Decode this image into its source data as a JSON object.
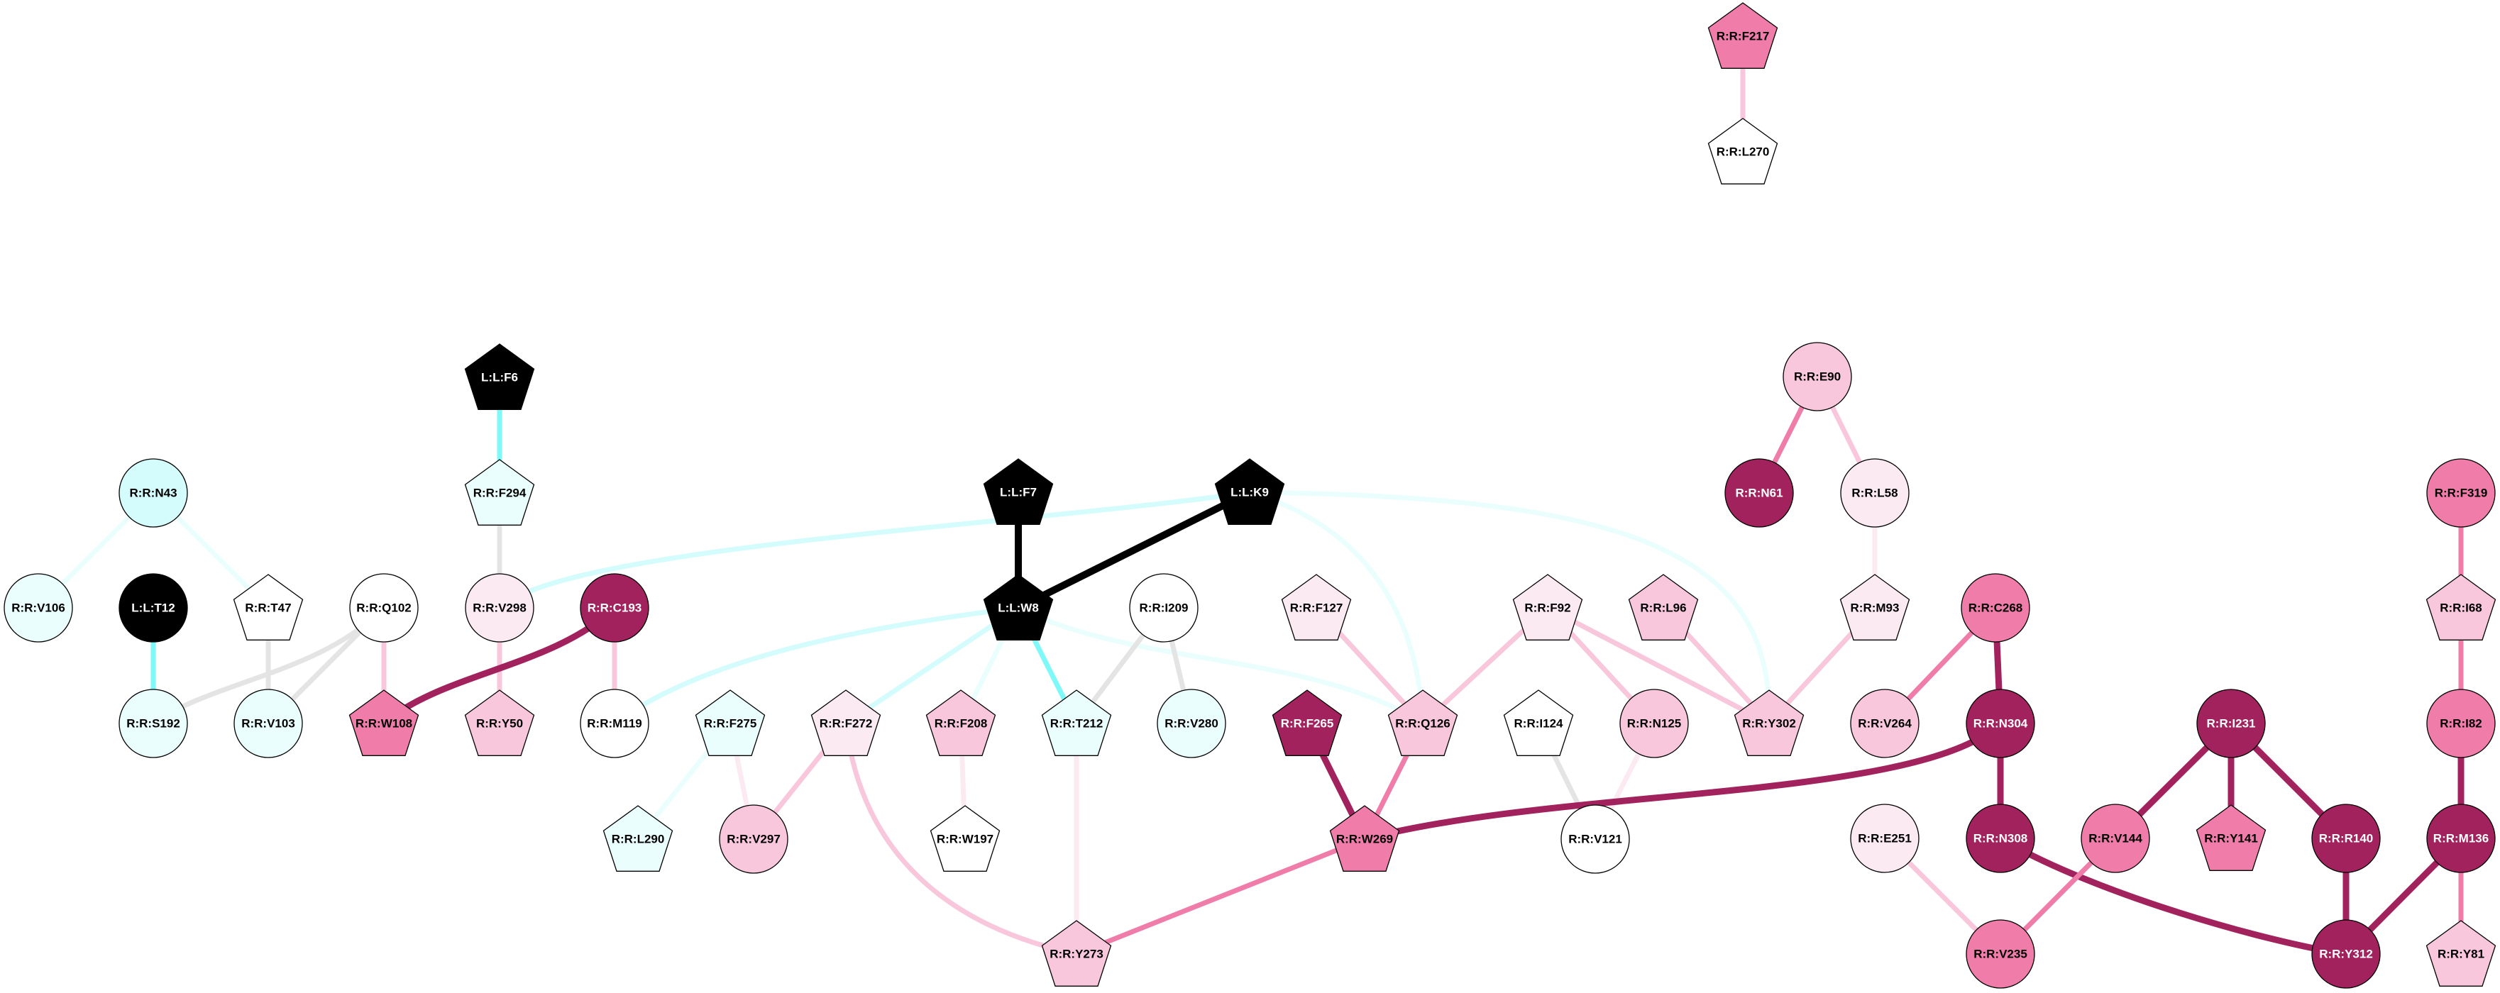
{
  "palette": {
    "black": "#000000",
    "dark": "#A2225E",
    "medium": "#EF7CA9",
    "light": "#F8C7DB",
    "pale": "#FBEAF2",
    "white": "#FFFFFF",
    "cyan_pale": "#EAFEFE",
    "cyan_light": "#D4FCFC",
    "cyan_strong": "#7FF8F8",
    "gray": "#E4E4E4"
  },
  "nodes": [
    {
      "id": "L:L:F6",
      "shape": "pentagon",
      "fill": "black"
    },
    {
      "id": "R:R:N43",
      "shape": "circle",
      "fill": "cyan_light"
    },
    {
      "id": "R:R:F294",
      "shape": "pentagon",
      "fill": "cyan_pale"
    },
    {
      "id": "R:R:V106",
      "shape": "circle",
      "fill": "cyan_pale"
    },
    {
      "id": "L:L:T12",
      "shape": "circle",
      "fill": "black"
    },
    {
      "id": "R:R:T47",
      "shape": "pentagon",
      "fill": "white"
    },
    {
      "id": "R:R:Q102",
      "shape": "circle",
      "fill": "white"
    },
    {
      "id": "R:R:V298",
      "shape": "circle",
      "fill": "pale"
    },
    {
      "id": "R:R:C193",
      "shape": "circle",
      "fill": "dark"
    },
    {
      "id": "R:R:S192",
      "shape": "circle",
      "fill": "cyan_pale"
    },
    {
      "id": "R:R:V103",
      "shape": "circle",
      "fill": "cyan_pale"
    },
    {
      "id": "R:R:W108",
      "shape": "pentagon",
      "fill": "medium"
    },
    {
      "id": "R:R:Y50",
      "shape": "pentagon",
      "fill": "light"
    },
    {
      "id": "R:R:M119",
      "shape": "circle",
      "fill": "white"
    },
    {
      "id": "R:R:F275",
      "shape": "pentagon",
      "fill": "cyan_pale"
    },
    {
      "id": "R:R:L290",
      "shape": "pentagon",
      "fill": "cyan_pale"
    },
    {
      "id": "R:R:V297",
      "shape": "circle",
      "fill": "light"
    },
    {
      "id": "R:R:F272",
      "shape": "pentagon",
      "fill": "pale"
    },
    {
      "id": "L:L:F7",
      "shape": "pentagon",
      "fill": "black"
    },
    {
      "id": "L:L:K9",
      "shape": "pentagon",
      "fill": "black"
    },
    {
      "id": "L:L:W8",
      "shape": "pentagon",
      "fill": "black"
    },
    {
      "id": "R:R:I209",
      "shape": "circle",
      "fill": "white"
    },
    {
      "id": "R:R:F127",
      "shape": "pentagon",
      "fill": "pale"
    },
    {
      "id": "R:R:F92",
      "shape": "pentagon",
      "fill": "pale"
    },
    {
      "id": "R:R:L96",
      "shape": "pentagon",
      "fill": "light"
    },
    {
      "id": "R:R:M93",
      "shape": "pentagon",
      "fill": "pale"
    },
    {
      "id": "R:R:C268",
      "shape": "circle",
      "fill": "medium"
    },
    {
      "id": "R:R:I68",
      "shape": "pentagon",
      "fill": "light"
    },
    {
      "id": "R:R:F208",
      "shape": "pentagon",
      "fill": "light"
    },
    {
      "id": "R:R:T212",
      "shape": "pentagon",
      "fill": "cyan_pale"
    },
    {
      "id": "R:R:V280",
      "shape": "circle",
      "fill": "cyan_pale"
    },
    {
      "id": "R:R:F265",
      "shape": "pentagon",
      "fill": "dark"
    },
    {
      "id": "R:R:Q126",
      "shape": "pentagon",
      "fill": "light"
    },
    {
      "id": "R:R:I124",
      "shape": "pentagon",
      "fill": "white"
    },
    {
      "id": "R:R:N125",
      "shape": "circle",
      "fill": "light"
    },
    {
      "id": "R:R:Y302",
      "shape": "pentagon",
      "fill": "light"
    },
    {
      "id": "R:R:V264",
      "shape": "circle",
      "fill": "light"
    },
    {
      "id": "R:R:N304",
      "shape": "circle",
      "fill": "dark"
    },
    {
      "id": "R:R:I231",
      "shape": "circle",
      "fill": "dark"
    },
    {
      "id": "R:R:I82",
      "shape": "circle",
      "fill": "medium"
    },
    {
      "id": "R:R:W197",
      "shape": "pentagon",
      "fill": "white"
    },
    {
      "id": "R:R:W269",
      "shape": "pentagon",
      "fill": "medium"
    },
    {
      "id": "R:R:V121",
      "shape": "circle",
      "fill": "white"
    },
    {
      "id": "R:R:E251",
      "shape": "circle",
      "fill": "pale"
    },
    {
      "id": "R:R:N308",
      "shape": "circle",
      "fill": "dark"
    },
    {
      "id": "R:R:V144",
      "shape": "circle",
      "fill": "medium"
    },
    {
      "id": "R:R:Y141",
      "shape": "pentagon",
      "fill": "medium"
    },
    {
      "id": "R:R:R140",
      "shape": "circle",
      "fill": "dark"
    },
    {
      "id": "R:R:M136",
      "shape": "circle",
      "fill": "dark"
    },
    {
      "id": "R:R:Y273",
      "shape": "pentagon",
      "fill": "light"
    },
    {
      "id": "R:R:V235",
      "shape": "circle",
      "fill": "medium"
    },
    {
      "id": "R:R:Y312",
      "shape": "circle",
      "fill": "dark"
    },
    {
      "id": "R:R:Y81",
      "shape": "pentagon",
      "fill": "light"
    },
    {
      "id": "R:R:F217",
      "shape": "pentagon",
      "fill": "medium"
    },
    {
      "id": "R:R:L270",
      "shape": "pentagon",
      "fill": "white"
    },
    {
      "id": "R:R:E90",
      "shape": "circle",
      "fill": "light"
    },
    {
      "id": "R:R:N61",
      "shape": "circle",
      "fill": "dark"
    },
    {
      "id": "R:R:L58",
      "shape": "circle",
      "fill": "pale"
    },
    {
      "id": "R:R:F319",
      "shape": "circle",
      "fill": "medium"
    }
  ],
  "edges": [
    {
      "source": "L:L:F6",
      "target": "R:R:F294",
      "color": "cyan_strong"
    },
    {
      "source": "R:R:N43",
      "target": "R:R:V106",
      "color": "cyan_pale"
    },
    {
      "source": "R:R:N43",
      "target": "R:R:T47",
      "color": "cyan_pale"
    },
    {
      "source": "L:L:T12",
      "target": "R:R:S192",
      "color": "cyan_strong"
    },
    {
      "source": "R:R:T47",
      "target": "R:R:V103",
      "color": "gray"
    },
    {
      "source": "R:R:Q102",
      "target": "R:R:S192",
      "color": "gray"
    },
    {
      "source": "R:R:Q102",
      "target": "R:R:V103",
      "color": "gray"
    },
    {
      "source": "R:R:Q102",
      "target": "R:R:W108",
      "color": "light"
    },
    {
      "source": "R:R:F294",
      "target": "R:R:V298",
      "color": "gray"
    },
    {
      "source": "R:R:V298",
      "target": "R:R:Y50",
      "color": "light"
    },
    {
      "source": "R:R:C193",
      "target": "R:R:W108",
      "color": "dark"
    },
    {
      "source": "R:R:C193",
      "target": "R:R:M119",
      "color": "light"
    },
    {
      "source": "R:R:V298",
      "target": "L:L:K9",
      "color": "cyan_light"
    },
    {
      "source": "R:R:M119",
      "target": "L:L:W8",
      "color": "cyan_light"
    },
    {
      "source": "R:R:F275",
      "target": "R:R:L290",
      "color": "cyan_pale"
    },
    {
      "source": "R:R:F275",
      "target": "R:R:V297",
      "color": "pale"
    },
    {
      "source": "R:R:F272",
      "target": "R:R:V297",
      "color": "light"
    },
    {
      "source": "R:R:F272",
      "target": "R:R:Y273",
      "color": "light"
    },
    {
      "source": "L:L:W8",
      "target": "R:R:F272",
      "color": "cyan_light"
    },
    {
      "source": "L:L:W8",
      "target": "R:R:F208",
      "color": "cyan_pale"
    },
    {
      "source": "L:L:W8",
      "target": "R:R:T212",
      "color": "cyan_strong"
    },
    {
      "source": "L:L:W8",
      "target": "R:R:Q126",
      "color": "cyan_pale"
    },
    {
      "source": "L:L:F7",
      "target": "L:L:W8",
      "color": "black"
    },
    {
      "source": "L:L:K9",
      "target": "L:L:W8",
      "color": "black"
    },
    {
      "source": "L:L:K9",
      "target": "R:R:Q126",
      "color": "cyan_pale"
    },
    {
      "source": "L:L:K9",
      "target": "R:R:Y302",
      "color": "cyan_pale"
    },
    {
      "source": "R:R:I209",
      "target": "R:R:T212",
      "color": "gray"
    },
    {
      "source": "R:R:I209",
      "target": "R:R:V280",
      "color": "gray"
    },
    {
      "source": "R:R:F208",
      "target": "R:R:W197",
      "color": "pale"
    },
    {
      "source": "R:R:T212",
      "target": "R:R:Y273",
      "color": "pale"
    },
    {
      "source": "R:R:F265",
      "target": "R:R:W269",
      "color": "dark"
    },
    {
      "source": "R:R:Q126",
      "target": "R:R:W269",
      "color": "medium"
    },
    {
      "source": "R:R:F127",
      "target": "R:R:Q126",
      "color": "light"
    },
    {
      "source": "R:R:F92",
      "target": "R:R:Q126",
      "color": "light"
    },
    {
      "source": "R:R:F92",
      "target": "R:R:N125",
      "color": "light"
    },
    {
      "source": "R:R:F92",
      "target": "R:R:Y302",
      "color": "light"
    },
    {
      "source": "R:R:L96",
      "target": "R:R:Y302",
      "color": "light"
    },
    {
      "source": "R:R:M93",
      "target": "R:R:Y302",
      "color": "light"
    },
    {
      "source": "R:R:L58",
      "target": "R:R:M93",
      "color": "pale"
    },
    {
      "source": "R:R:E90",
      "target": "R:R:N61",
      "color": "medium"
    },
    {
      "source": "R:R:E90",
      "target": "R:R:L58",
      "color": "light"
    },
    {
      "source": "R:R:I124",
      "target": "R:R:V121",
      "color": "gray"
    },
    {
      "source": "R:R:N125",
      "target": "R:R:V121",
      "color": "pale"
    },
    {
      "source": "R:R:W269",
      "target": "R:R:Y273",
      "color": "medium"
    },
    {
      "source": "R:R:W269",
      "target": "R:R:N304",
      "color": "dark"
    },
    {
      "source": "R:R:C268",
      "target": "R:R:V264",
      "color": "medium"
    },
    {
      "source": "R:R:C268",
      "target": "R:R:N304",
      "color": "dark"
    },
    {
      "source": "R:R:N304",
      "target": "R:R:N308",
      "color": "dark"
    },
    {
      "source": "R:R:N308",
      "target": "R:R:Y312",
      "color": "dark"
    },
    {
      "source": "R:R:E251",
      "target": "R:R:V235",
      "color": "light"
    },
    {
      "source": "R:R:V144",
      "target": "R:R:V235",
      "color": "medium"
    },
    {
      "source": "R:R:I231",
      "target": "R:R:V144",
      "color": "dark"
    },
    {
      "source": "R:R:I231",
      "target": "R:R:Y141",
      "color": "dark"
    },
    {
      "source": "R:R:I231",
      "target": "R:R:R140",
      "color": "dark"
    },
    {
      "source": "R:R:R140",
      "target": "R:R:Y312",
      "color": "dark"
    },
    {
      "source": "R:R:M136",
      "target": "R:R:Y312",
      "color": "dark"
    },
    {
      "source": "R:R:F319",
      "target": "R:R:I68",
      "color": "medium"
    },
    {
      "source": "R:R:I68",
      "target": "R:R:I82",
      "color": "medium"
    },
    {
      "source": "R:R:I82",
      "target": "R:R:M136",
      "color": "dark"
    },
    {
      "source": "R:R:M136",
      "target": "R:R:Y81",
      "color": "medium"
    },
    {
      "source": "R:R:F217",
      "target": "R:R:L270",
      "color": "light"
    }
  ]
}
